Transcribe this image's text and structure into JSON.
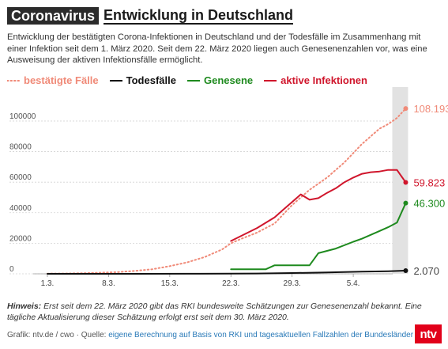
{
  "header": {
    "badge": "Coronavirus",
    "title": "Entwicklung in Deutschland"
  },
  "intro": "Entwicklung der bestätigten Corona-Infektionen in Deutschland und der Todesfälle im Zusammenhang mit einer Infektion seit dem 1. März 2020. Seit dem 22. März 2020 liegen auch Genesenenzahlen vor, was eine Ausweisung der aktiven Infektionsfälle ermöglicht.",
  "colors": {
    "confirmed": "#f08a78",
    "deaths": "#111111",
    "recovered": "#1e8a1e",
    "active": "#d0162c",
    "highlight": "#e2e2e2"
  },
  "chart_data": {
    "type": "line",
    "x_start": "1.3.",
    "x_tick_labels": [
      "1.3.",
      "8.3.",
      "15.3.",
      "22.3.",
      "29.3.",
      "5.4."
    ],
    "y_tick_labels": [
      "0",
      "20000",
      "40000",
      "60000",
      "80000",
      "100000"
    ],
    "ylim": [
      0,
      115000
    ],
    "x_days": [
      0,
      41
    ],
    "grid": true,
    "legend_position": "top-left",
    "highlight_last_day": true,
    "series": [
      {
        "name": "bestätigte Fälle",
        "key": "confirmed",
        "style": "dotted",
        "points": [
          [
            0,
            130
          ],
          [
            2,
            200
          ],
          [
            4,
            400
          ],
          [
            6,
            700
          ],
          [
            8,
            1100
          ],
          [
            10,
            1900
          ],
          [
            12,
            3000
          ],
          [
            14,
            5000
          ],
          [
            16,
            7500
          ],
          [
            18,
            11000
          ],
          [
            20,
            16000
          ],
          [
            21,
            20000
          ],
          [
            22,
            22500
          ],
          [
            24,
            27000
          ],
          [
            26,
            33000
          ],
          [
            28,
            45000
          ],
          [
            30,
            55000
          ],
          [
            32,
            63000
          ],
          [
            34,
            73000
          ],
          [
            36,
            85000
          ],
          [
            37,
            90000
          ],
          [
            38,
            95000
          ],
          [
            39,
            98000
          ],
          [
            40,
            102000
          ],
          [
            41,
            108193
          ]
        ],
        "end_label": "108.193"
      },
      {
        "name": "Todesfälle",
        "key": "deaths",
        "style": "solid",
        "points": [
          [
            0,
            0
          ],
          [
            10,
            10
          ],
          [
            16,
            50
          ],
          [
            21,
            100
          ],
          [
            24,
            200
          ],
          [
            28,
            500
          ],
          [
            32,
            900
          ],
          [
            36,
            1400
          ],
          [
            39,
            1700
          ],
          [
            41,
            2070
          ]
        ],
        "end_label": "2.070"
      },
      {
        "name": "Genesene",
        "key": "recovered",
        "style": "solid",
        "points": [
          [
            21,
            3000
          ],
          [
            24,
            3000
          ],
          [
            25,
            3000
          ],
          [
            26,
            5600
          ],
          [
            28,
            5600
          ],
          [
            29,
            5600
          ],
          [
            30,
            5600
          ],
          [
            31,
            13500
          ],
          [
            33,
            16500
          ],
          [
            35,
            21000
          ],
          [
            36,
            23000
          ],
          [
            38,
            28000
          ],
          [
            39,
            30500
          ],
          [
            40,
            33500
          ],
          [
            41,
            46300
          ]
        ],
        "end_label": "46.300"
      },
      {
        "name": "aktive Infektionen",
        "key": "active",
        "style": "solid",
        "points": [
          [
            21,
            21500
          ],
          [
            24,
            30000
          ],
          [
            26,
            37000
          ],
          [
            27,
            42000
          ],
          [
            28,
            47000
          ],
          [
            29,
            52000
          ],
          [
            30,
            48500
          ],
          [
            31,
            49500
          ],
          [
            32,
            53000
          ],
          [
            33,
            56000
          ],
          [
            34,
            60000
          ],
          [
            35,
            63000
          ],
          [
            36,
            65500
          ],
          [
            37,
            66500
          ],
          [
            38,
            67000
          ],
          [
            39,
            68000
          ],
          [
            40,
            68000
          ],
          [
            41,
            59823
          ]
        ],
        "end_label": "59.823"
      }
    ]
  },
  "note": {
    "bold": "Hinweis:",
    "text": " Erst seit dem 22. März 2020 gibt das RKI bundesweite Schätzungen zur Genesenenzahl bekannt. Eine tägliche Aktualisierung dieser Schätzung erfolgt erst seit dem 30. März 2020."
  },
  "source": {
    "prefix": "Grafik: ntv.de / cwo · Quelle: ",
    "link": "eigene Berechnung auf Basis von RKI und tagesaktuellen Fallzahlen der Bundesländer"
  },
  "logo": "ntv"
}
